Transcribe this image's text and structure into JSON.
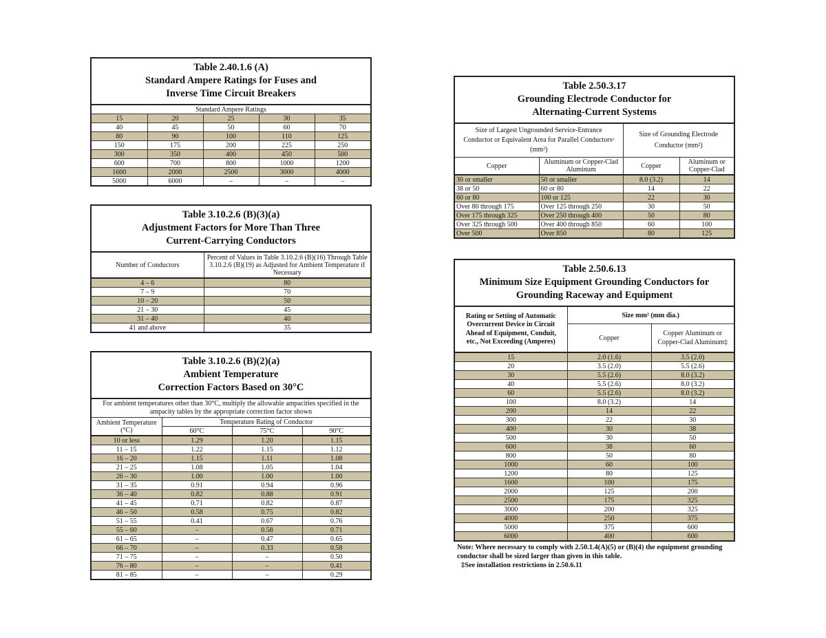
{
  "tables": [
    {
      "title": [
        "Table 2.40.1.6 (A)",
        "Standard Ampere Ratings for Fuses and",
        "Inverse Time Circuit Breakers"
      ],
      "subtitle": "Standard Ampere Ratings",
      "rows": [
        [
          "15",
          "20",
          "25",
          "30",
          "35"
        ],
        [
          "40",
          "45",
          "50",
          "60",
          "70"
        ],
        [
          "80",
          "90",
          "100",
          "110",
          "125"
        ],
        [
          "150",
          "175",
          "200",
          "225",
          "250"
        ],
        [
          "300",
          "350",
          "400",
          "450",
          "500"
        ],
        [
          "600",
          "700",
          "800",
          "1000",
          "1200"
        ],
        [
          "1600",
          "2000",
          "2500",
          "3000",
          "4000"
        ],
        [
          "5000",
          "6000",
          "–",
          "–",
          "–"
        ]
      ]
    },
    {
      "title": [
        "Table 3.10.2.6 (B)(3)(a)",
        "Adjustment Factors for More Than Three",
        "Current-Carrying Conductors"
      ],
      "header": [
        "Number of Conductors",
        "Percent of Values in Table 3.10.2.6 (B)(16) Through Table 3.10.2.6 (B)(19) as Adjusted for Ambient Temperature if Necessary"
      ],
      "rows": [
        [
          "4 – 6",
          "80"
        ],
        [
          "7 – 9",
          "70"
        ],
        [
          "10 – 20",
          "50"
        ],
        [
          "21 – 30",
          "45"
        ],
        [
          "31 – 40",
          "40"
        ],
        [
          "41 and above",
          "35"
        ]
      ]
    },
    {
      "title": [
        "Table 3.10.2.6 (B)(2)(a)",
        "Ambient Temperature",
        "Correction Factors Based on 30°C"
      ],
      "note": "For ambient temperatures other than 30°C, multiply the allowable ampacities specified in the ampacity tables by the appropriate correction factor shown",
      "header": [
        "Ambient Temperature (°C)",
        "Temperature Rating of Conductor"
      ],
      "subheader": [
        "60°C",
        "75°C",
        "90°C"
      ],
      "rows": [
        [
          "10 or less",
          "1.29",
          "1.20",
          "1.15"
        ],
        [
          "11 – 15",
          "1.22",
          "1.15",
          "1.12"
        ],
        [
          "16 – 20",
          "1.15",
          "1.11",
          "1.08"
        ],
        [
          "21 – 25",
          "1.08",
          "1.05",
          "1.04"
        ],
        [
          "26 – 30",
          "1.00",
          "1.00",
          "1.00"
        ],
        [
          "31 – 35",
          "0.91",
          "0.94",
          "0.96"
        ],
        [
          "36 – 40",
          "0.82",
          "0.88",
          "0.91"
        ],
        [
          "41 – 45",
          "0.71",
          "0.82",
          "0.87"
        ],
        [
          "46 – 50",
          "0.58",
          "0.75",
          "0.82"
        ],
        [
          "51 – 55",
          "0.41",
          "0.67",
          "0.76"
        ],
        [
          "55 – 60",
          "–",
          "0.58",
          "0.71"
        ],
        [
          "61 – 65",
          "–",
          "0.47",
          "0.65"
        ],
        [
          "66 – 70",
          "–",
          "0.33",
          "0.58"
        ],
        [
          "71 – 75",
          "–",
          "–",
          "0.50"
        ],
        [
          "76 – 80",
          "–",
          "–",
          "0.41"
        ],
        [
          "81 – 85",
          "–",
          "–",
          "0.29"
        ]
      ]
    },
    {
      "title": [
        "Table 2.50.3.17",
        "Grounding Electrode Conductor for",
        "Alternating-Current Systems"
      ],
      "header": [
        "Size of Largest Ungrounded Service-Entrance Conductor or Equivalent Area for Parallel Conductorsᵃ (mm²)",
        "Size of Grounding Electrode Conductor (mm²)"
      ],
      "subheader": [
        "Copper",
        "Aluminum or Copper-Clad Aluminum",
        "Copper",
        "Aluminum or Copper-Clad"
      ],
      "rows": [
        [
          "30 or smaller",
          "50 or smaller",
          "8.0 (3.2)",
          "14"
        ],
        [
          "38 or 50",
          "60 or 80",
          "14",
          "22"
        ],
        [
          "60 or 80",
          "100 or 125",
          "22",
          "30"
        ],
        [
          "Over 80 through 175",
          "Over 125 through 250",
          "30",
          "50"
        ],
        [
          "Over 175 through 325",
          "Over 250 through 400",
          "50",
          "80"
        ],
        [
          "Over 325 through 500",
          "Over 400 through 850",
          "60",
          "100"
        ],
        [
          "Over 500",
          "Over 850",
          "80",
          "125"
        ]
      ]
    },
    {
      "title": [
        "Table 2.50.6.13",
        "Minimum Size Equipment Grounding Conductors for",
        "Grounding Raceway and Equipment"
      ],
      "header": [
        "Rating or Setting of Automatic Overcurrent Device in Circuit Ahead of Equipment, Conduit, etc., Not Exceeding (Amperes)",
        "Size mm² (mm dia.)"
      ],
      "subheader": [
        "Copper",
        "Copper Aluminum or Copper-Clad Aluminum‡"
      ],
      "rows": [
        [
          "15",
          "2.0 (1.6)",
          "3.5 (2.0)"
        ],
        [
          "20",
          "3.5 (2.0)",
          "5.5 (2.6)"
        ],
        [
          "30",
          "5.5 (2.6)",
          "8.0 (3.2)"
        ],
        [
          "40",
          "5.5 (2.6)",
          "8.0 (3.2)"
        ],
        [
          "60",
          "5.5 (2.6)",
          "8.0 (3.2)"
        ],
        [
          "100",
          "8.0 (3.2)",
          "14"
        ],
        [
          "200",
          "14",
          "22"
        ],
        [
          "300",
          "22",
          "30"
        ],
        [
          "400",
          "30",
          "38"
        ],
        [
          "500",
          "30",
          "50"
        ],
        [
          "600",
          "38",
          "60"
        ],
        [
          "800",
          "50",
          "80"
        ],
        [
          "1000",
          "60",
          "100"
        ],
        [
          "1200",
          "80",
          "125"
        ],
        [
          "1600",
          "100",
          "175"
        ],
        [
          "2000",
          "125",
          "200"
        ],
        [
          "2500",
          "175",
          "325"
        ],
        [
          "3000",
          "200",
          "325"
        ],
        [
          "4000",
          "250",
          "375"
        ],
        [
          "5000",
          "375",
          "600"
        ],
        [
          "6000",
          "400",
          "600"
        ]
      ],
      "notes": [
        "Note: Where necessary to comply with 2.50.1.4(A)(5) or (B)(4) the equipment grounding conductor shall be sized larger than given in this table.",
        "‡See installation restrictions in 2.50.6.11"
      ]
    }
  ]
}
